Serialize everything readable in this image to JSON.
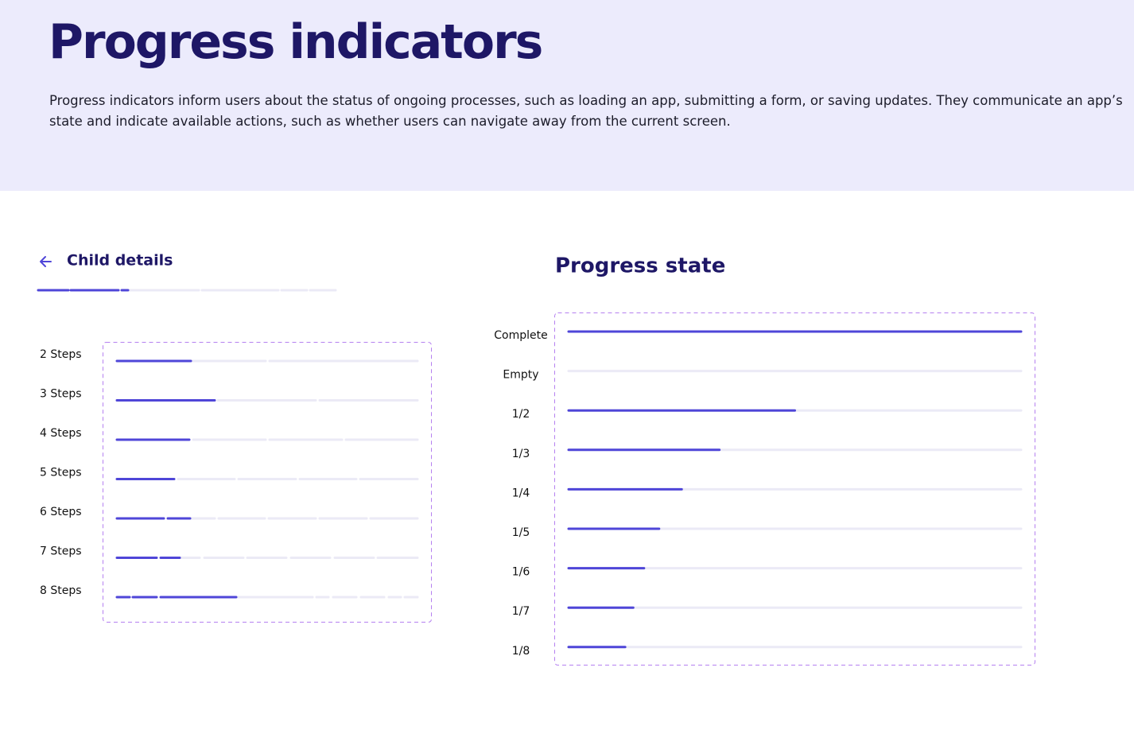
{
  "header": {
    "title": "Progress indicators",
    "description": "Progress indicators inform users about the status of ongoing processes, such as loading an app, submitting a form, or saving updates. They communicate an app’s state and indicate available actions, such as whether users can navigate away from the current screen."
  },
  "steps_panel": {
    "heading": "Child details",
    "rows": [
      "2 Steps",
      "3 Steps",
      "4 Steps",
      "5 Steps",
      "6 Steps",
      "7 Steps",
      "8 Steps"
    ]
  },
  "state_panel": {
    "heading": "Progress state",
    "rows": [
      "Complete",
      "Empty",
      "1/2",
      "1/3",
      "1/4",
      "1/5",
      "1/6",
      "1/7",
      "1/8"
    ]
  }
}
